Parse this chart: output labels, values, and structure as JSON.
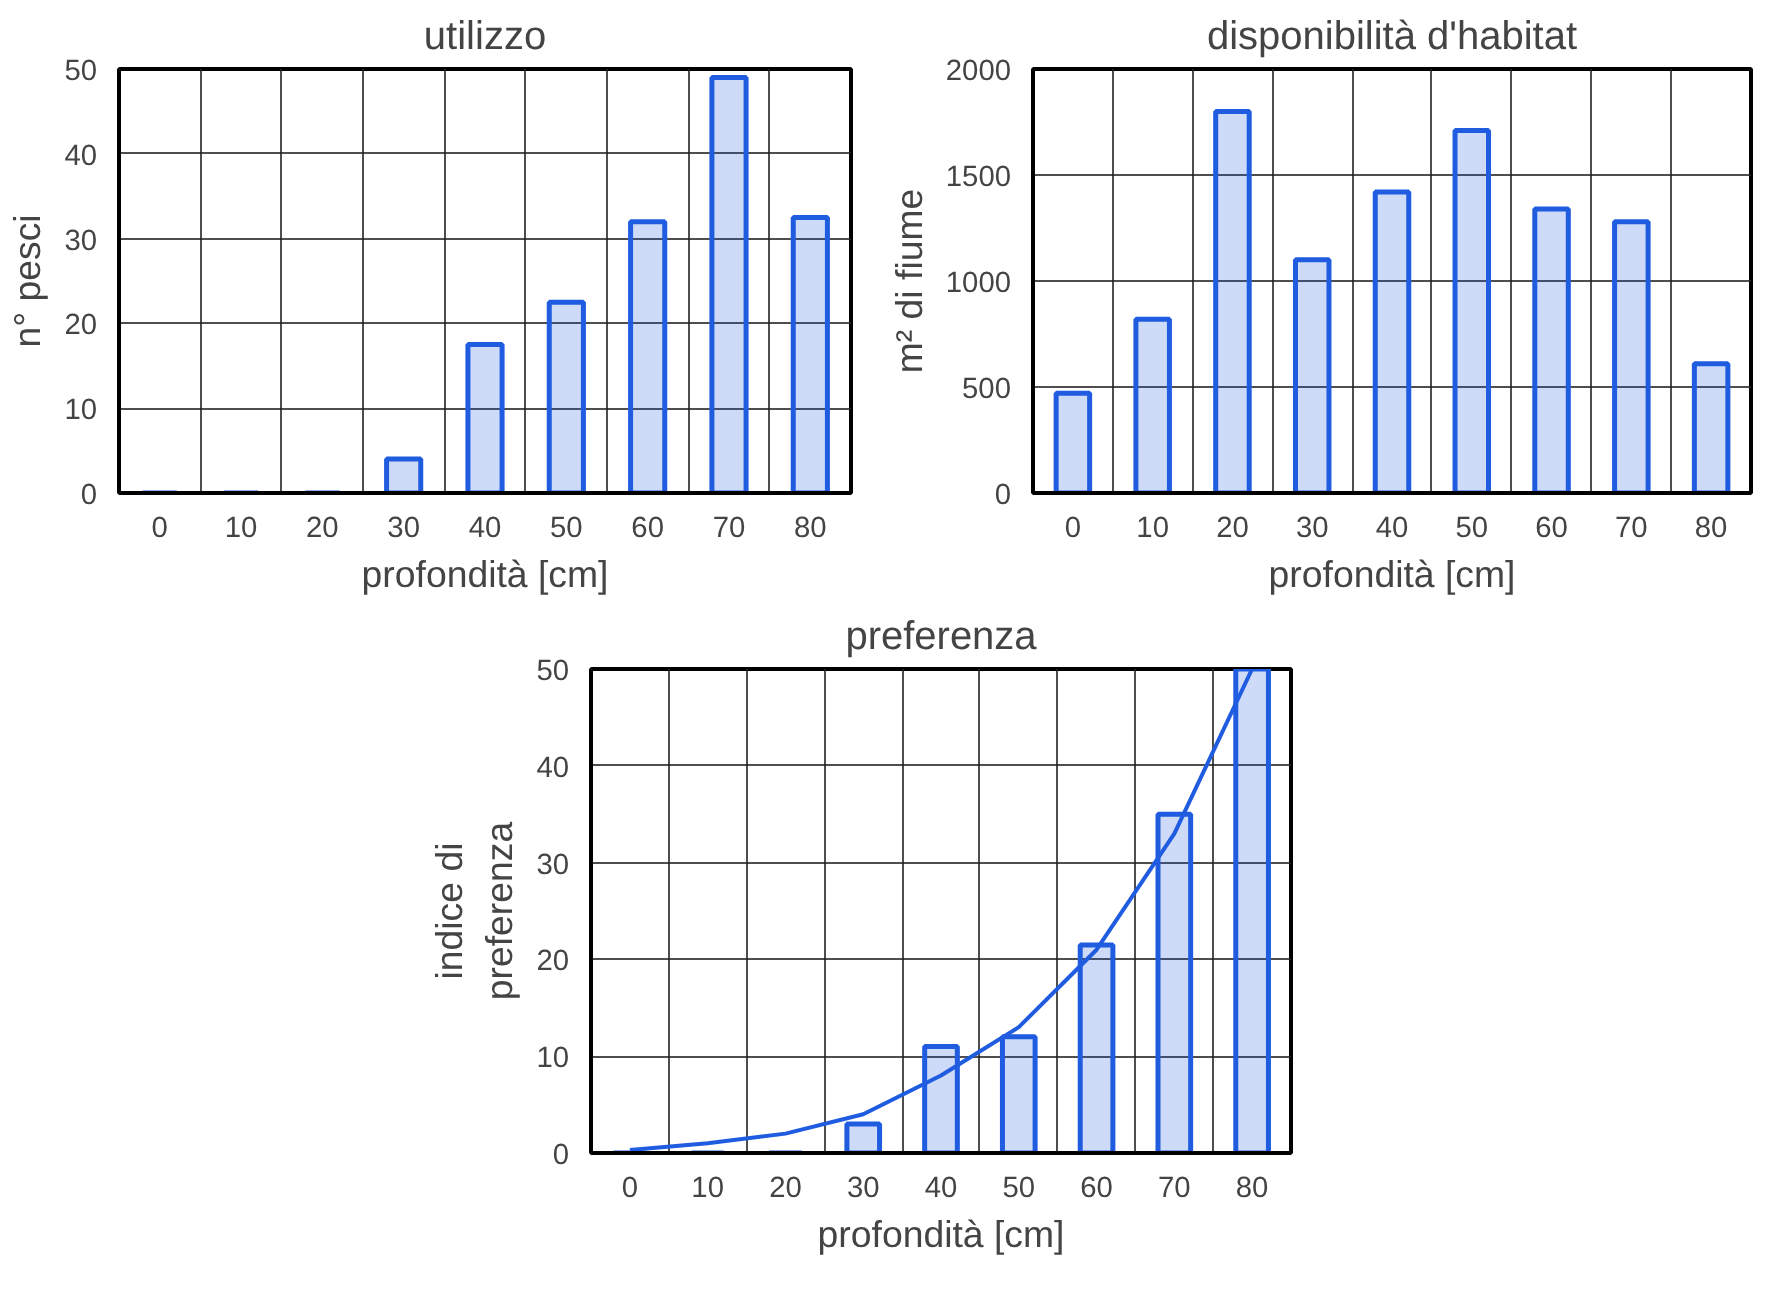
{
  "chart_data": [
    {
      "type": "bar",
      "title": "utilizzo",
      "xlabel": "profondità [cm]",
      "ylabel": "n° pesci",
      "categories": [
        "0",
        "10",
        "20",
        "30",
        "40",
        "50",
        "60",
        "70",
        "80"
      ],
      "series": [
        {
          "color": "#1f5ce0",
          "values": [
            0,
            0,
            0,
            4,
            17.5,
            22.5,
            32,
            49,
            32.5
          ]
        }
      ],
      "ylim": [
        0,
        50
      ],
      "yticks": [
        0,
        10,
        20,
        30,
        40,
        50
      ],
      "grid": true
    },
    {
      "type": "bar",
      "title": "disponibilità d'habitat",
      "xlabel": "profondità [cm]",
      "ylabel": "m² di fiume",
      "categories": [
        "0",
        "10",
        "20",
        "30",
        "40",
        "50",
        "60",
        "70",
        "80"
      ],
      "series": [
        {
          "color": "#1f5ce0",
          "values": [
            470,
            820,
            1800,
            1100,
            1420,
            1710,
            1340,
            1280,
            610
          ]
        }
      ],
      "ylim": [
        0,
        2000
      ],
      "yticks": [
        0,
        500,
        1000,
        1500,
        2000
      ],
      "grid": true
    },
    {
      "type": "bar",
      "title": "preferenza",
      "xlabel": "profondità [cm]",
      "ylabel": "indice di\npreferenza",
      "categories": [
        "0",
        "10",
        "20",
        "30",
        "40",
        "50",
        "60",
        "70",
        "80"
      ],
      "series": [
        {
          "color": "#1f5ce0",
          "values": [
            0,
            0,
            0,
            3,
            11,
            12,
            21.5,
            35,
            50
          ]
        },
        {
          "type": "line",
          "color": "#1f5ce0",
          "x": [
            "0",
            "10",
            "20",
            "30",
            "40",
            "50",
            "60",
            "70",
            "80"
          ],
          "values": [
            0.3,
            1,
            2,
            4,
            8,
            13,
            21,
            33,
            50
          ]
        }
      ],
      "ylim": [
        0,
        50
      ],
      "yticks": [
        0,
        10,
        20,
        30,
        40,
        50
      ],
      "grid": true
    }
  ]
}
